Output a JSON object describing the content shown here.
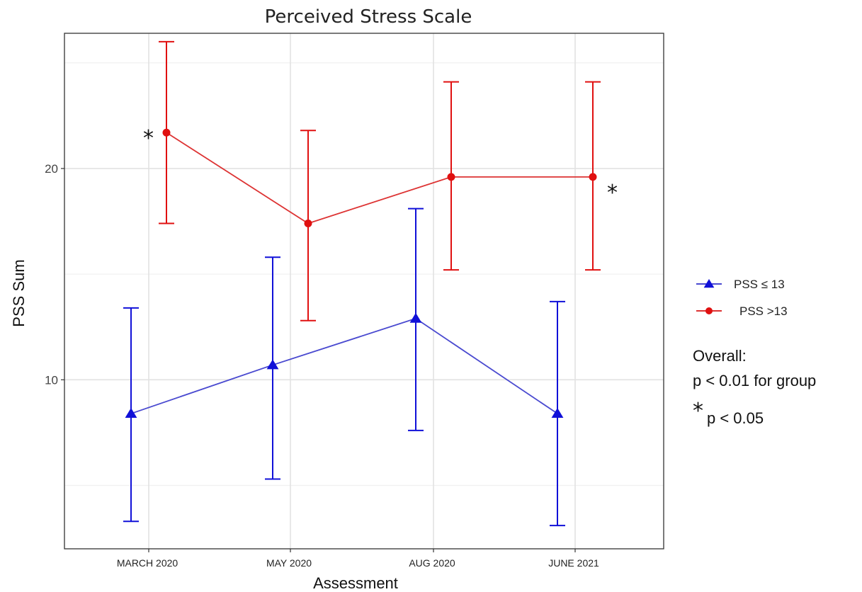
{
  "chart_data": {
    "type": "line",
    "title": "Perceived Stress Scale",
    "xlabel": "Assessment",
    "ylabel": "PSS Sum",
    "categories": [
      "MARCH 2020",
      "MAY 2020",
      "AUG 2020",
      "JUNE 2021"
    ],
    "yticks": [
      10,
      20
    ],
    "ylim": [
      2.0,
      26.4
    ],
    "grid": true,
    "legend_position": "right",
    "series": [
      {
        "name": "PSS ≤ 13",
        "color": "#1010d8",
        "line_color": "#4a4ad0",
        "marker": "triangle",
        "points": [
          {
            "category": "MARCH 2020",
            "mean": 8.4,
            "lower": 3.3,
            "upper": 13.4
          },
          {
            "category": "MAY 2020",
            "mean": 10.7,
            "lower": 5.3,
            "upper": 15.8
          },
          {
            "category": "AUG 2020",
            "mean": 12.9,
            "lower": 7.6,
            "upper": 18.1
          },
          {
            "category": "JUNE 2021",
            "mean": 8.4,
            "lower": 3.1,
            "upper": 13.7
          }
        ]
      },
      {
        "name": "PSS >13",
        "color": "#e01010",
        "line_color": "#dd3333",
        "marker": "circle",
        "points": [
          {
            "category": "MARCH 2020",
            "mean": 21.7,
            "lower": 17.4,
            "upper": 26.0
          },
          {
            "category": "MAY 2020",
            "mean": 17.4,
            "lower": 12.8,
            "upper": 21.8
          },
          {
            "category": "AUG 2020",
            "mean": 19.6,
            "lower": 15.2,
            "upper": 24.1
          },
          {
            "category": "JUNE 2021",
            "mean": 19.6,
            "lower": 15.2,
            "upper": 24.1
          }
        ]
      }
    ],
    "annotations": [
      {
        "text": "*",
        "series": 1,
        "category": "MARCH 2020",
        "side": "left"
      },
      {
        "text": "*",
        "series": 1,
        "category": "JUNE 2021",
        "side": "right"
      }
    ]
  },
  "notes": {
    "line1": "Overall:",
    "line2": "p < 0.01 for group",
    "star": "*",
    "line3": "p < 0.05"
  }
}
